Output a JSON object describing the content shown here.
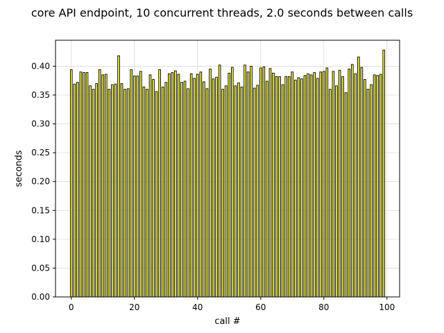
{
  "chart_data": {
    "type": "bar",
    "title": "core API endpoint, 10 concurrent threads, 2.0 seconds between calls",
    "xlabel": "call #",
    "ylabel": "seconds",
    "xlim": [
      -5,
      104
    ],
    "ylim": [
      0,
      0.445
    ],
    "xticks": [
      0,
      20,
      40,
      60,
      80,
      100
    ],
    "yticks": [
      0.0,
      0.05,
      0.1,
      0.15,
      0.2,
      0.25,
      0.3,
      0.35,
      0.4
    ],
    "grid": true,
    "bar_color": "#f0f040",
    "edge_color": "#000000",
    "series": [
      {
        "name": "seconds",
        "x": [
          0,
          1,
          2,
          3,
          4,
          5,
          6,
          7,
          8,
          9,
          10,
          11,
          12,
          13,
          14,
          15,
          16,
          17,
          18,
          19,
          20,
          21,
          22,
          23,
          24,
          25,
          26,
          27,
          28,
          29,
          30,
          31,
          32,
          33,
          34,
          35,
          36,
          37,
          38,
          39,
          40,
          41,
          42,
          43,
          44,
          45,
          46,
          47,
          48,
          49,
          50,
          51,
          52,
          53,
          54,
          55,
          56,
          57,
          58,
          59,
          60,
          61,
          62,
          63,
          64,
          65,
          66,
          67,
          68,
          69,
          70,
          71,
          72,
          73,
          74,
          75,
          76,
          77,
          78,
          79,
          80,
          81,
          82,
          83,
          84,
          85,
          86,
          87,
          88,
          89,
          90,
          91,
          92,
          93,
          94,
          95,
          96,
          97,
          98,
          99
        ],
        "values": [
          0.394,
          0.369,
          0.372,
          0.39,
          0.389,
          0.389,
          0.366,
          0.36,
          0.37,
          0.394,
          0.385,
          0.386,
          0.36,
          0.368,
          0.369,
          0.418,
          0.37,
          0.36,
          0.361,
          0.394,
          0.383,
          0.383,
          0.391,
          0.364,
          0.36,
          0.385,
          0.377,
          0.356,
          0.394,
          0.364,
          0.372,
          0.387,
          0.389,
          0.392,
          0.386,
          0.372,
          0.374,
          0.361,
          0.387,
          0.379,
          0.386,
          0.39,
          0.373,
          0.361,
          0.395,
          0.378,
          0.381,
          0.402,
          0.36,
          0.366,
          0.388,
          0.398,
          0.366,
          0.371,
          0.364,
          0.402,
          0.39,
          0.4,
          0.362,
          0.367,
          0.397,
          0.399,
          0.374,
          0.396,
          0.388,
          0.382,
          0.382,
          0.368,
          0.382,
          0.382,
          0.39,
          0.376,
          0.38,
          0.378,
          0.384,
          0.387,
          0.385,
          0.389,
          0.379,
          0.39,
          0.391,
          0.397,
          0.36,
          0.391,
          0.366,
          0.393,
          0.382,
          0.354,
          0.395,
          0.403,
          0.387,
          0.416,
          0.398,
          0.377,
          0.36,
          0.368,
          0.385,
          0.384,
          0.386,
          0.428
        ]
      }
    ]
  }
}
